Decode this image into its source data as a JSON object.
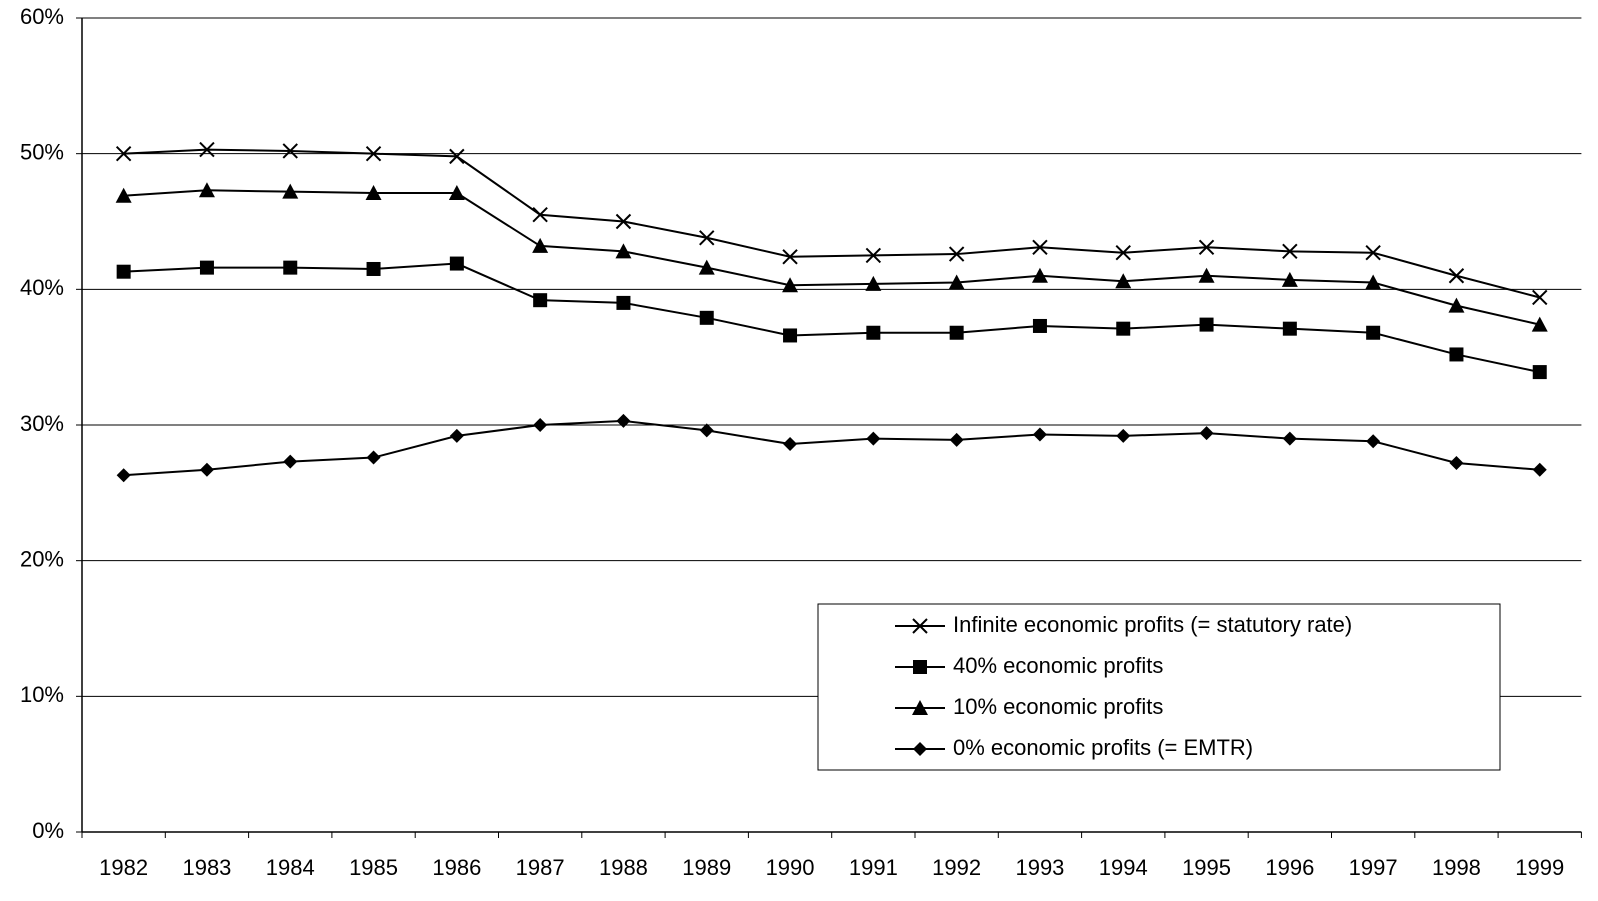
{
  "chart_data": {
    "type": "line",
    "categories": [
      "1982",
      "1983",
      "1984",
      "1985",
      "1986",
      "1987",
      "1988",
      "1989",
      "1990",
      "1991",
      "1992",
      "1993",
      "1994",
      "1995",
      "1996",
      "1997",
      "1998",
      "1999"
    ],
    "series": [
      {
        "name": "Infinite economic profits (= statutory rate)",
        "color": "#000000",
        "marker": "x",
        "values": [
          50.0,
          50.3,
          50.2,
          50.0,
          49.8,
          45.5,
          45.0,
          43.8,
          42.4,
          42.5,
          42.6,
          43.1,
          42.7,
          43.1,
          42.8,
          42.7,
          41.0,
          39.4
        ]
      },
      {
        "name": "40% economic profits",
        "color": "#000000",
        "marker": "square",
        "values": [
          41.3,
          41.6,
          41.6,
          41.5,
          41.9,
          39.2,
          39.0,
          37.9,
          36.6,
          36.8,
          36.8,
          37.3,
          37.1,
          37.4,
          37.1,
          36.8,
          35.2,
          33.9
        ]
      },
      {
        "name": "10% economic profits",
        "color": "#000000",
        "marker": "triangle",
        "values": [
          46.9,
          47.3,
          47.2,
          47.1,
          47.1,
          43.2,
          42.8,
          41.6,
          40.3,
          40.4,
          40.5,
          41.0,
          40.6,
          41.0,
          40.7,
          40.5,
          38.8,
          37.4
        ]
      },
      {
        "name": "0% economic profits (= EMTR)",
        "color": "#000000",
        "marker": "diamond",
        "values": [
          26.3,
          26.7,
          27.3,
          27.6,
          29.2,
          30.0,
          30.3,
          29.6,
          28.6,
          29.0,
          28.9,
          29.3,
          29.2,
          29.4,
          29.0,
          28.8,
          27.2,
          26.7
        ]
      }
    ],
    "ylim": [
      0,
      60
    ],
    "yticks": [
      {
        "value": 0,
        "label": "0%"
      },
      {
        "value": 10,
        "label": "10%"
      },
      {
        "value": 20,
        "label": "20%"
      },
      {
        "value": 30,
        "label": "30%"
      },
      {
        "value": 40,
        "label": "40%"
      },
      {
        "value": 50,
        "label": "50%"
      },
      {
        "value": 60,
        "label": "60%"
      }
    ],
    "grid": true
  }
}
